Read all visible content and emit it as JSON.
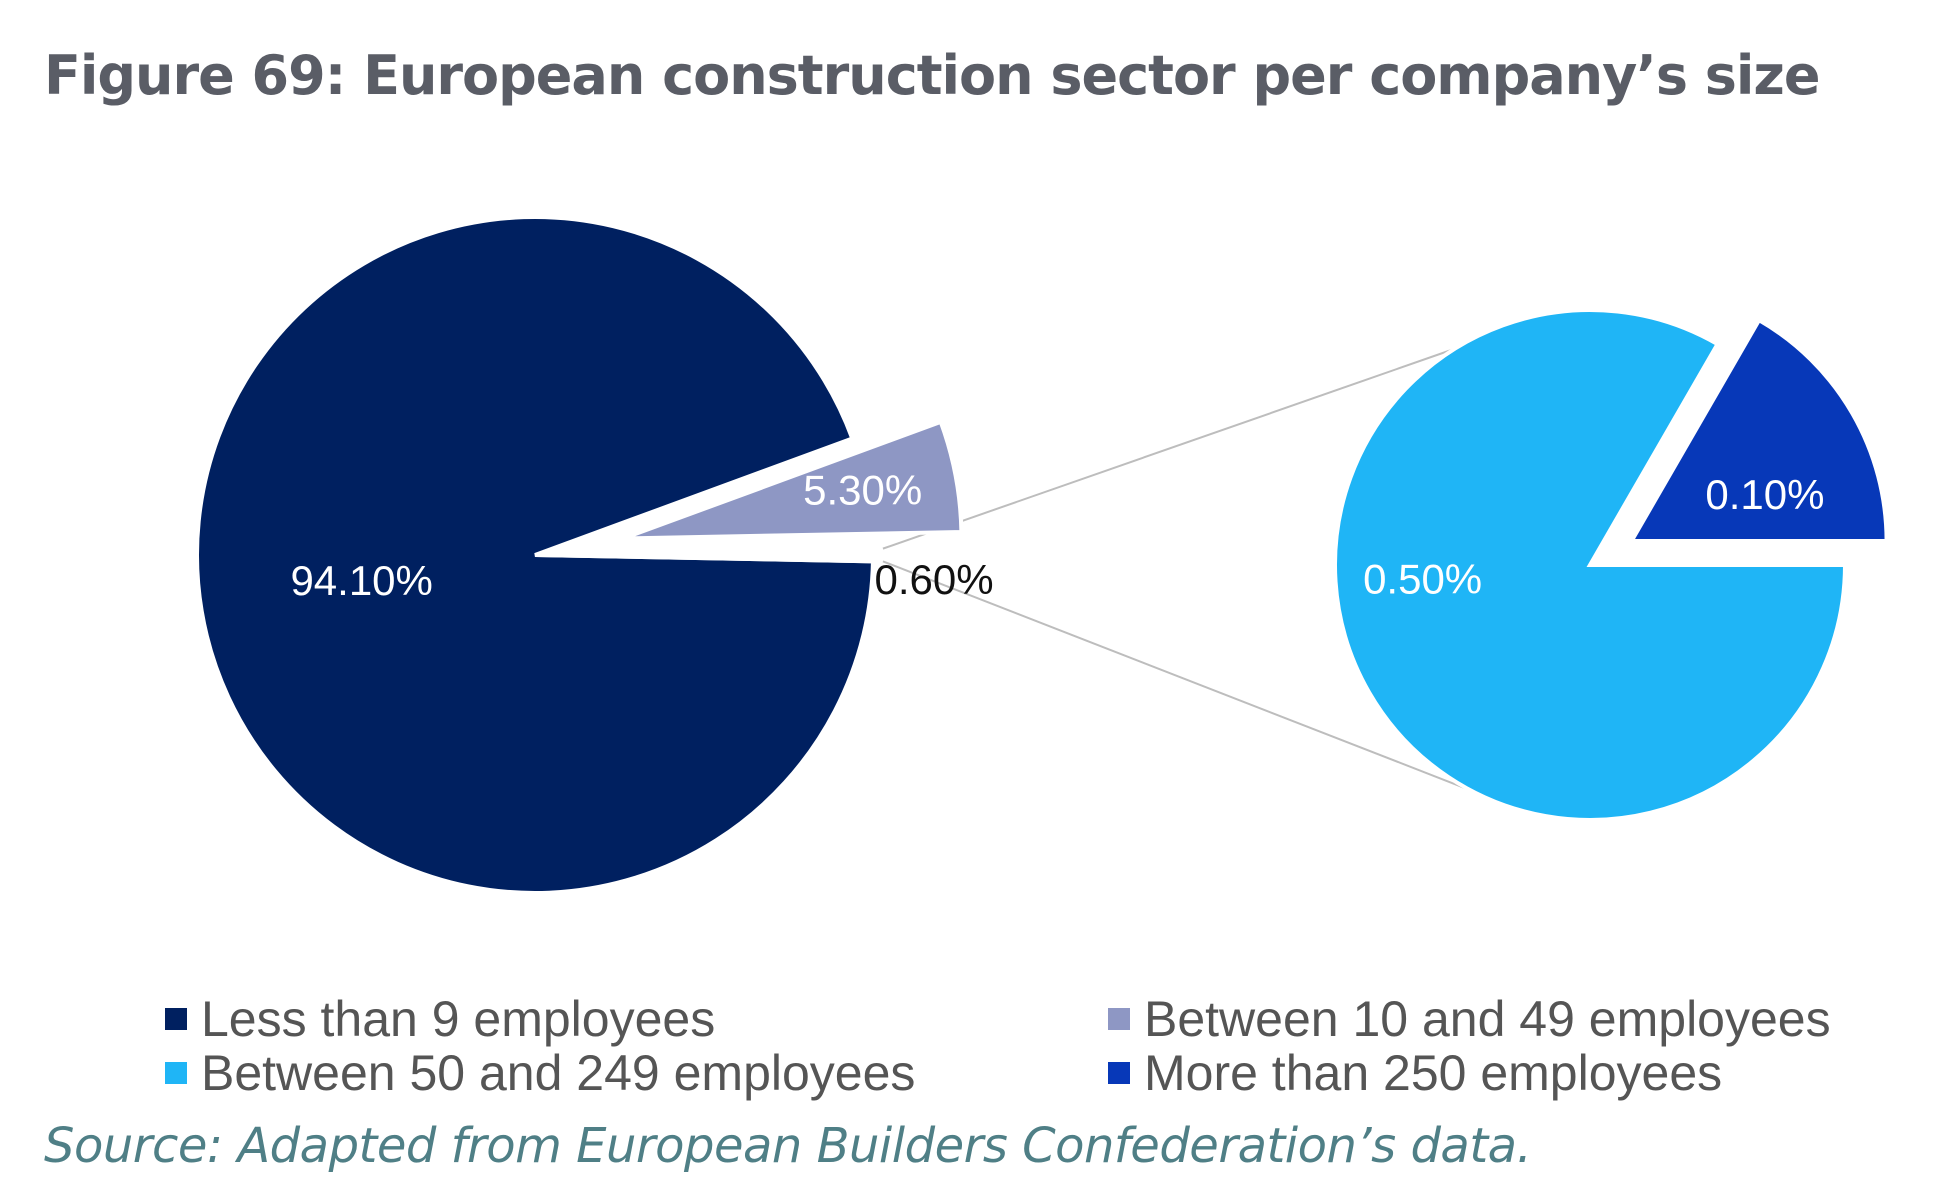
{
  "title": "Figure 69: European construction sector per company’s size",
  "source": "Source: Adapted from European Builders Confederation’s data.",
  "chart_data": {
    "type": "pie",
    "subtype": "pie-of-pie",
    "main_pie": {
      "slices": [
        {
          "label": "Less than 9 employees",
          "value": 94.1,
          "display": "94.10%",
          "color": "#002060"
        },
        {
          "label": "Between 10 and 49 employees",
          "value": 5.3,
          "display": "5.30%",
          "color": "#8e97c4"
        },
        {
          "label": "",
          "value": 0.6,
          "display": "0.60%",
          "color": "#ffffff"
        }
      ]
    },
    "secondary_pie": {
      "slices": [
        {
          "label": "Between 50 and 249 employees",
          "value": 0.5,
          "display": "0.50%",
          "color": "#1fb5f6"
        },
        {
          "label": "More than 250 employees",
          "value": 0.1,
          "display": "0.10%",
          "color": "#0738b8"
        }
      ]
    },
    "legend": [
      {
        "label": "Less than 9 employees",
        "color": "#002060"
      },
      {
        "label": "Between 10 and 49 employees",
        "color": "#8e97c4"
      },
      {
        "label": "Between 50 and 249 employees",
        "color": "#1fb5f6"
      },
      {
        "label": "More than 250 employees",
        "color": "#0738b8"
      }
    ],
    "legend_position": "bottom"
  }
}
